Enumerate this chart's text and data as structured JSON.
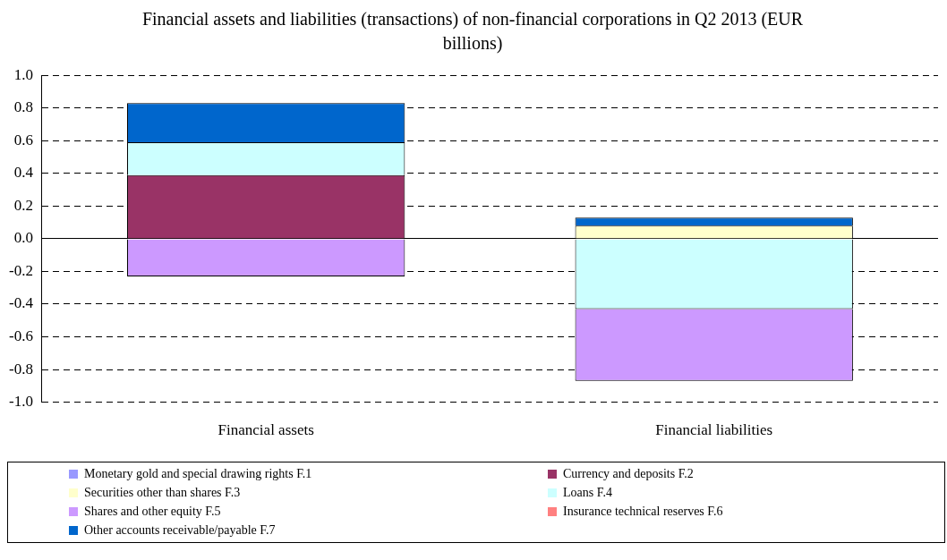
{
  "chart_data": {
    "type": "bar",
    "title": "Financial assets and liabilities (transactions) of non-financial corporations in Q2 2013 (EUR billions)",
    "stacked": true,
    "categories": [
      "Financial assets",
      "Financial liabilities"
    ],
    "series": [
      {
        "name": "Monetary gold and special drawing rights F.1",
        "color": "#9999ff",
        "values": [
          null,
          null
        ]
      },
      {
        "name": "Currency and deposits F.2",
        "color": "#993366",
        "values": [
          0.39,
          null
        ]
      },
      {
        "name": "Securities other than shares F.3",
        "color": "#ffffcc",
        "values": [
          null,
          0.08
        ]
      },
      {
        "name": "Loans F.4",
        "color": "#ccffff",
        "values": [
          0.2,
          -0.43
        ]
      },
      {
        "name": "Shares and other equity F.5",
        "color": "#cc99ff",
        "values": [
          -0.23,
          -0.44
        ]
      },
      {
        "name": "Insurance technical reserves F.6",
        "color": "#ff8080",
        "values": [
          null,
          null
        ]
      },
      {
        "name": "Other accounts receivable/payable F.7",
        "color": "#0066cc",
        "values": [
          0.24,
          0.05
        ]
      }
    ],
    "ylim": [
      -1,
      1
    ],
    "yticks": [
      {
        "value": -1,
        "label": "-1.0"
      },
      {
        "value": -0.8,
        "label": "-0.8"
      },
      {
        "value": -0.6,
        "label": "-0.6"
      },
      {
        "value": -0.4,
        "label": "-0.4"
      },
      {
        "value": -0.2,
        "label": "-0.2"
      },
      {
        "value": 0,
        "label": "0.0"
      },
      {
        "value": 0.2,
        "label": "0.2"
      },
      {
        "value": 0.4,
        "label": "0.4"
      },
      {
        "value": 0.6,
        "label": "0.6"
      },
      {
        "value": 0.8,
        "label": "0.8"
      },
      {
        "value": 1,
        "label": "1.0"
      }
    ],
    "grid": "y",
    "legend": "bottom"
  }
}
